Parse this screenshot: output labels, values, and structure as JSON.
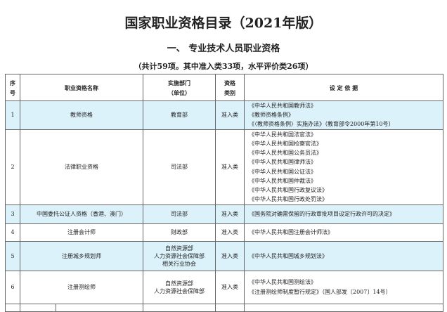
{
  "title": "国家职业资格目录（2021年版）",
  "section": "一、  专业技术人员职业资格",
  "summary": "（共计59项。其中准入类33项，水平评价类26项）",
  "headers": {
    "no": "序号",
    "name": "职业资格名称",
    "dept": "实施部门（单位）",
    "dept_l1": "实施部门",
    "dept_l2": "（单位）",
    "type_l1": "资格",
    "type_l2": "类别",
    "basis": "设 定 依 据",
    "no_l1": "序",
    "no_l2": "号"
  },
  "highlight_color": "#dcf2fb",
  "rows": [
    {
      "no": "1",
      "name": "教师资格",
      "dept": [
        "教育部"
      ],
      "type": "准入类",
      "basis": [
        "《中华人民共和国教师法》",
        "《教师资格条例》",
        "《〈教师资格条例〉实施办法》（教育部令2000年第10号）"
      ],
      "hl": true
    },
    {
      "no": "2",
      "name": "法律职业资格",
      "dept": [
        "司法部"
      ],
      "type": "准入类",
      "basis": [
        "《中华人民共和国法官法》",
        "《中华人民共和国检察官法》",
        "《中华人民共和国公务员法》",
        "《中华人民共和国律师法》",
        "《中华人民共和国公证法》",
        "《中华人民共和国仲裁法》",
        "《中华人民共和国行政复议法》",
        "《中华人民共和国行政处罚法》"
      ],
      "hl": false
    },
    {
      "no": "3",
      "name": "中国委托公证人资格（香港、澳门）",
      "dept": [
        "司法部"
      ],
      "type": "准入类",
      "basis": [
        "《国务院对确需保留的行政审批项目设定行政许可的决定》"
      ],
      "hl": true
    },
    {
      "no": "4",
      "name": "注册会计师",
      "dept": [
        "财政部"
      ],
      "type": "准入类",
      "basis": [
        "《中华人民共和国注册会计师法》"
      ],
      "hl": false
    },
    {
      "no": "5",
      "name": "注册城乡规划师",
      "dept": [
        "自然资源部",
        "人力资源社会保障部",
        "相关行业协会"
      ],
      "type": "准入类",
      "basis": [
        "《中华人民共和国城乡规划法》"
      ],
      "hl": true
    },
    {
      "no": "6",
      "name": "注册测绘师",
      "dept": [
        "自然资源部",
        "人力资源社会保障部"
      ],
      "type": "准入类",
      "basis": [
        "《中华人民共和国测绘法》",
        "《注册测绘师制度暂行规定》（国人部发〔2007〕14号）"
      ],
      "hl": false
    }
  ]
}
